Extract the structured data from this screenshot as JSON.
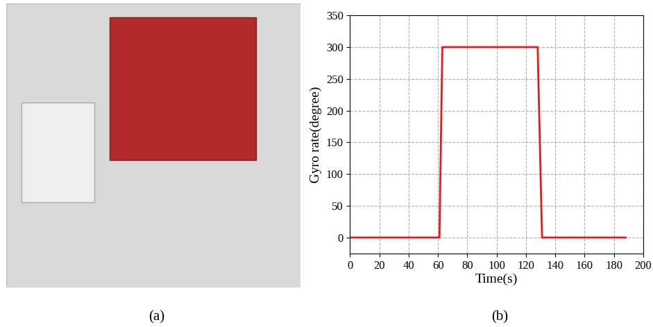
{
  "figure": {
    "photo_caption": "(a)",
    "chart_caption": "(b)"
  },
  "chart_data": {
    "type": "line",
    "x": [
      0,
      61,
      63,
      128,
      131,
      188
    ],
    "values": [
      0,
      0,
      300,
      300,
      0,
      0
    ],
    "color": "#e41a1c",
    "xlabel": "Time(s)",
    "ylabel": "Gyro rate(degree)",
    "xlim": [
      0,
      200
    ],
    "ylim": [
      -25,
      350
    ],
    "xticks": [
      0,
      20,
      40,
      60,
      80,
      100,
      120,
      140,
      160,
      180,
      200
    ],
    "yticks": [
      0,
      50,
      100,
      150,
      200,
      250,
      300,
      350
    ],
    "grid": true
  }
}
